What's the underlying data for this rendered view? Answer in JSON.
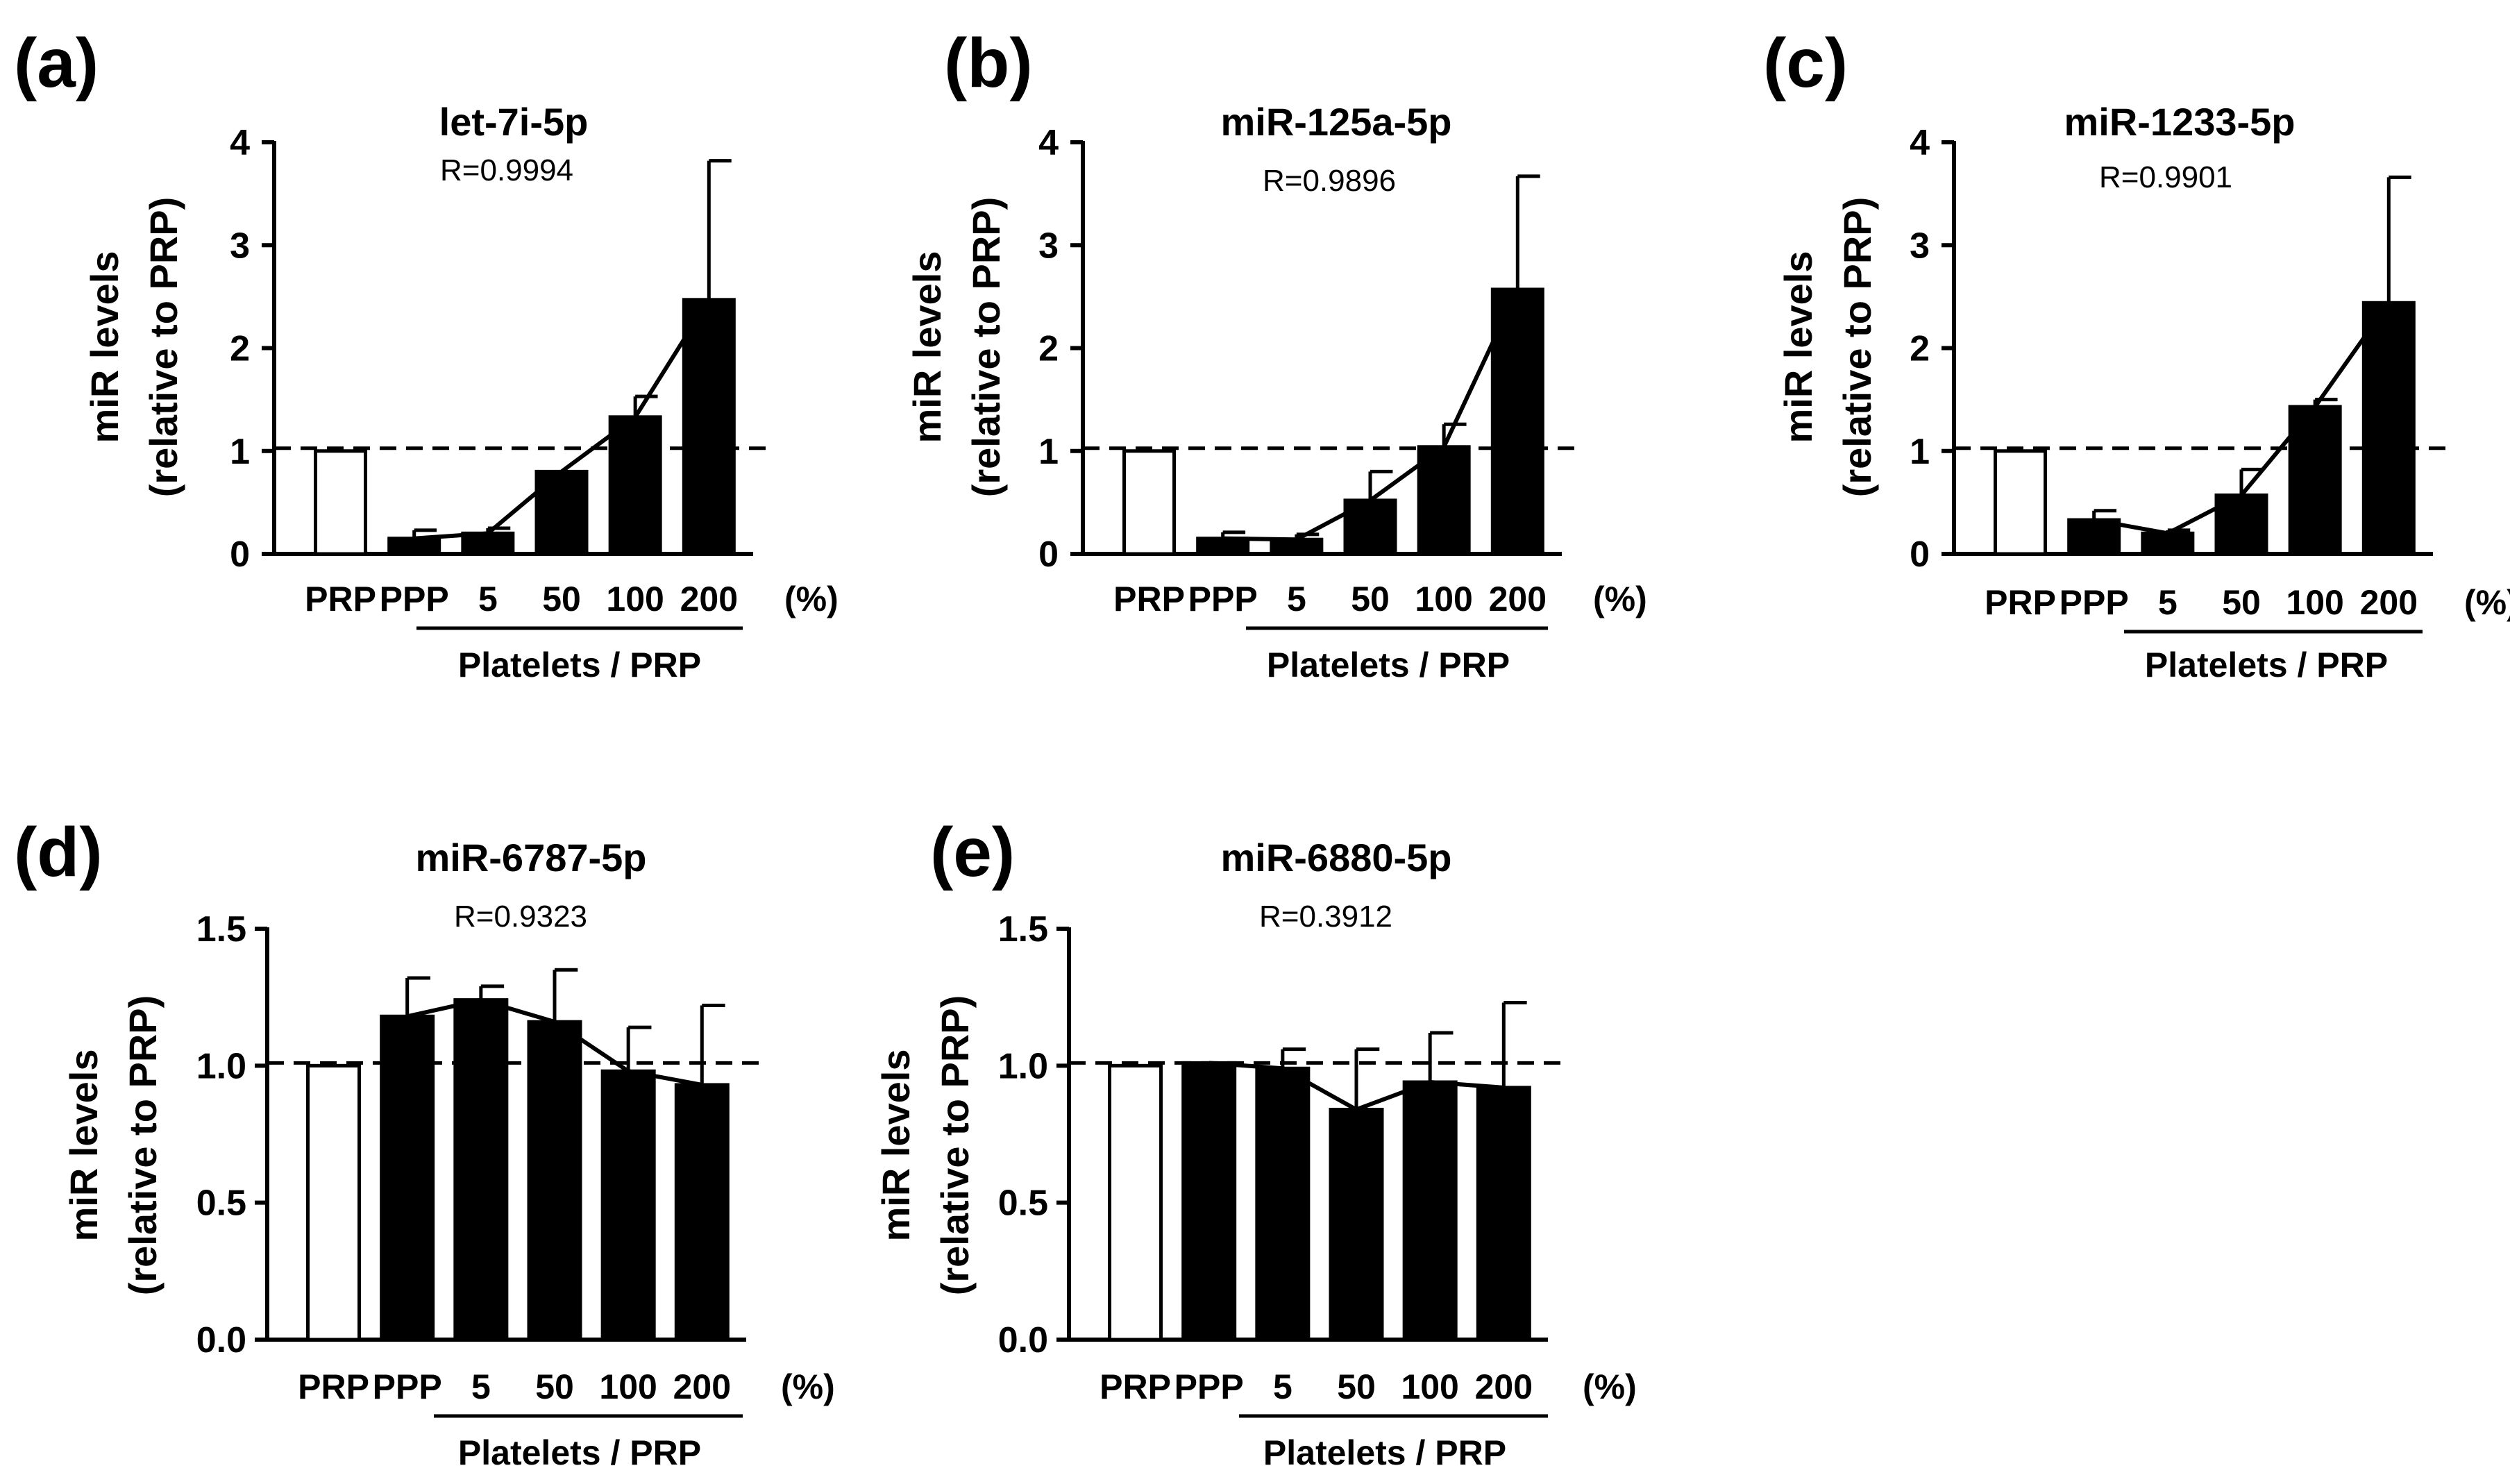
{
  "chart_data": [
    {
      "type": "bar",
      "panel_label": "(a)",
      "title": "let-7i-5p",
      "r_value": "R=0.9994",
      "ylabel": [
        "miR levels",
        "(relative to PRP)"
      ],
      "ylim": [
        0,
        4
      ],
      "yticks": [
        "0",
        "1",
        "2",
        "3",
        "4"
      ],
      "reference_line": 1,
      "categories": [
        "PRP",
        "PPP",
        "5",
        "50",
        "100",
        "200"
      ],
      "unit_label": "(%)",
      "group_label": "Platelets / PRP",
      "values": [
        1.0,
        0.15,
        0.2,
        0.8,
        1.33,
        2.47
      ],
      "errors": [
        0,
        0.08,
        0.05,
        0.0,
        0.2,
        1.35
      ],
      "fills": [
        "#ffffff",
        "#000000",
        "#000000",
        "#000000",
        "#000000",
        "#000000"
      ],
      "trend_line_from_index": 1
    },
    {
      "type": "bar",
      "panel_label": "(b)",
      "title": "miR-125a-5p",
      "r_value": "R=0.9896",
      "ylabel": [
        "miR levels",
        "(relative to PRP)"
      ],
      "ylim": [
        0,
        4
      ],
      "yticks": [
        "0",
        "1",
        "2",
        "3",
        "4"
      ],
      "reference_line": 1,
      "categories": [
        "PRP",
        "PPP",
        "5",
        "50",
        "100",
        "200"
      ],
      "unit_label": "(%)",
      "group_label": "Platelets / PRP",
      "values": [
        1.0,
        0.15,
        0.14,
        0.52,
        1.04,
        2.57
      ],
      "errors": [
        0,
        0.06,
        0.05,
        0.28,
        0.22,
        1.1
      ],
      "fills": [
        "#ffffff",
        "#000000",
        "#000000",
        "#000000",
        "#000000",
        "#000000"
      ],
      "trend_line_from_index": 1
    },
    {
      "type": "bar",
      "panel_label": "(c)",
      "title": "miR-1233-5p",
      "r_value": "R=0.9901",
      "ylabel": [
        "miR levels",
        "(relative to PRP)"
      ],
      "ylim": [
        0,
        4
      ],
      "yticks": [
        "0",
        "1",
        "2",
        "3",
        "4"
      ],
      "reference_line": 1,
      "categories": [
        "PRP",
        "PPP",
        "5",
        "50",
        "100",
        "200"
      ],
      "unit_label": "(%)",
      "group_label": "Platelets / PRP",
      "values": [
        1.0,
        0.33,
        0.2,
        0.57,
        1.43,
        2.44
      ],
      "errors": [
        0,
        0.09,
        0.03,
        0.25,
        0.07,
        1.22
      ],
      "fills": [
        "#ffffff",
        "#000000",
        "#000000",
        "#000000",
        "#000000",
        "#000000"
      ],
      "trend_line_from_index": 1
    },
    {
      "type": "bar",
      "panel_label": "(d)",
      "title": "miR-6787-5p",
      "r_value": "R=0.9323",
      "ylabel": [
        "miR levels",
        "(relative to PRP)"
      ],
      "ylim": [
        0,
        1.5
      ],
      "yticks": [
        "0.0",
        "0.5",
        "1.0",
        "1.5"
      ],
      "reference_line": 1,
      "categories": [
        "PRP",
        "PPP",
        "5",
        "50",
        "100",
        "200"
      ],
      "unit_label": "(%)",
      "group_label": "Platelets / PRP",
      "values": [
        1.0,
        1.18,
        1.24,
        1.16,
        0.98,
        0.93
      ],
      "errors": [
        0,
        0.14,
        0.05,
        0.19,
        0.16,
        0.29
      ],
      "fills": [
        "#ffffff",
        "#000000",
        "#000000",
        "#000000",
        "#000000",
        "#000000"
      ],
      "trend_line_from_index": 1
    },
    {
      "type": "bar",
      "panel_label": "(e)",
      "title": "miR-6880-5p",
      "r_value": "R=0.3912",
      "ylabel": [
        "miR levels",
        "(relative to PRP)"
      ],
      "ylim": [
        0,
        1.5
      ],
      "yticks": [
        "0.0",
        "0.5",
        "1.0",
        "1.5"
      ],
      "reference_line": 1,
      "categories": [
        "PRP",
        "PPP",
        "5",
        "50",
        "100",
        "200"
      ],
      "unit_label": "(%)",
      "group_label": "Platelets / PRP",
      "values": [
        1.0,
        1.01,
        0.99,
        0.84,
        0.94,
        0.92
      ],
      "errors": [
        0,
        0.0,
        0.07,
        0.22,
        0.18,
        0.31
      ],
      "fills": [
        "#ffffff",
        "#000000",
        "#000000",
        "#000000",
        "#000000",
        "#000000"
      ],
      "trend_line_from_index": 1
    }
  ]
}
